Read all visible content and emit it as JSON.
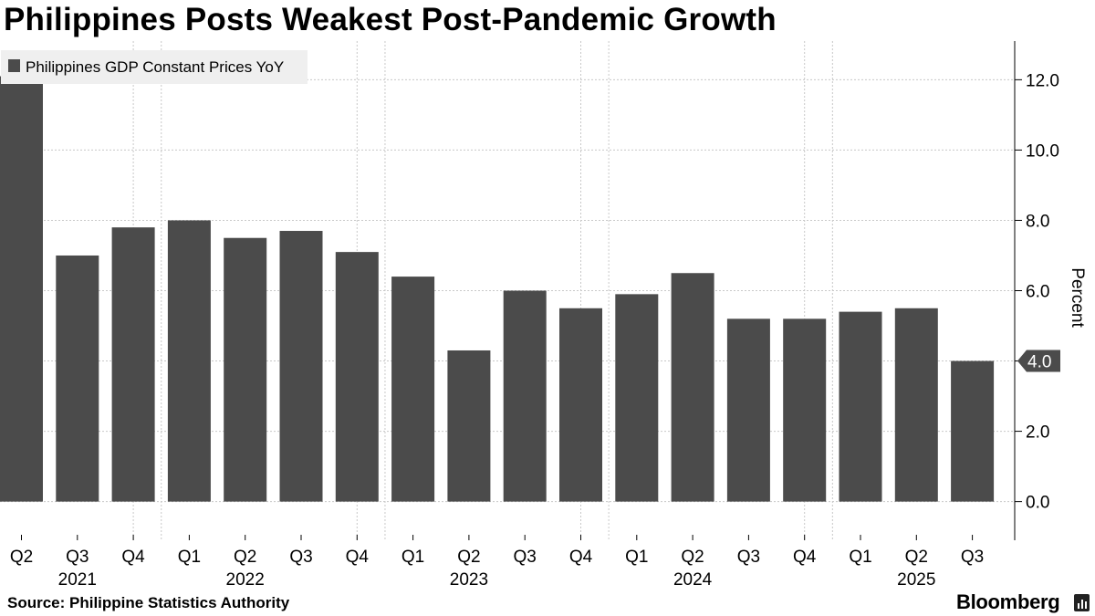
{
  "title": "Philippines Posts Weakest Post-Pandemic Growth",
  "source": "Source: Philippine Statistics Authority",
  "brand": "Bloomberg",
  "colors": {
    "bar": "#4b4b4b",
    "grid": "#c8c8c8",
    "legend_bg": "#efefef",
    "last_value_bg": "#4b4b4b"
  },
  "chart_data": {
    "type": "bar",
    "legend": "Philippines GDP Constant Prices YoY",
    "legend_position": "top-left",
    "ylabel": "Percent",
    "ylim": [
      -1.1,
      13.1
    ],
    "y_ticks": [
      "0.0",
      "2.0",
      "4.0",
      "6.0",
      "8.0",
      "10.0",
      "12.0"
    ],
    "y_axis_side": "right",
    "grid": true,
    "categories": [
      "Q2 2021",
      "Q3 2021",
      "Q4 2021",
      "Q1 2022",
      "Q2 2022",
      "Q3 2022",
      "Q4 2022",
      "Q1 2023",
      "Q2 2023",
      "Q3 2023",
      "Q4 2023",
      "Q1 2024",
      "Q2 2024",
      "Q3 2024",
      "Q4 2024",
      "Q1 2025",
      "Q2 2025",
      "Q3 2025"
    ],
    "quarter_labels": [
      "Q2",
      "Q3",
      "Q4",
      "Q1",
      "Q2",
      "Q3",
      "Q4",
      "Q1",
      "Q2",
      "Q3",
      "Q4",
      "Q1",
      "Q2",
      "Q3",
      "Q4",
      "Q1",
      "Q2",
      "Q3"
    ],
    "year_labels": [
      {
        "year": "2021",
        "index": 1
      },
      {
        "year": "2022",
        "index": 4
      },
      {
        "year": "2023",
        "index": 8
      },
      {
        "year": "2024",
        "index": 12
      },
      {
        "year": "2025",
        "index": 16
      }
    ],
    "values": [
      12.1,
      7.0,
      7.8,
      8.0,
      7.5,
      7.7,
      7.1,
      6.4,
      4.3,
      6.0,
      5.5,
      5.9,
      6.5,
      5.2,
      5.2,
      5.4,
      5.5,
      4.0
    ],
    "last_value_label": "4.0"
  }
}
